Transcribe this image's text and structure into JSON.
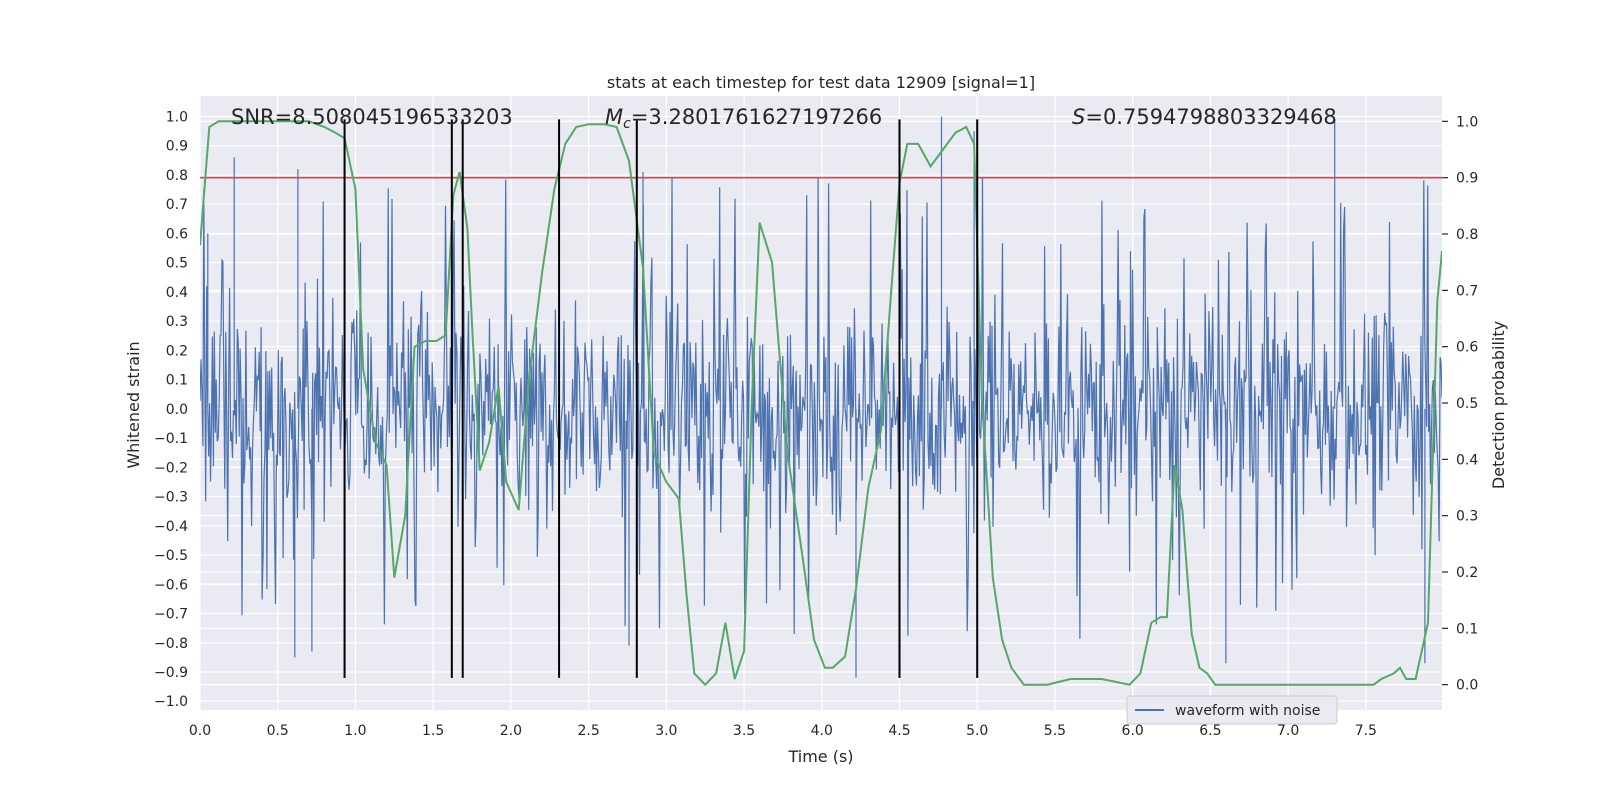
{
  "chart_data": {
    "type": "line",
    "title": "stats at each timestep for test data 12909 [signal=1]",
    "xlabel": "Time (s)",
    "ylabel": "Whitened strain",
    "ylabel_right": "Detection probability",
    "xlim": [
      0.0,
      7.99
    ],
    "ylim": [
      -1.03,
      1.07
    ],
    "ylim_right": [
      -0.045,
      1.045
    ],
    "x_ticks": [
      0.0,
      0.5,
      1.0,
      1.5,
      2.0,
      2.5,
      3.0,
      3.5,
      4.0,
      4.5,
      5.0,
      5.5,
      6.0,
      6.5,
      7.0,
      7.5
    ],
    "x_tick_labels": [
      "0.0",
      "0.5",
      "1.0",
      "1.5",
      "2.0",
      "2.5",
      "3.0",
      "3.5",
      "4.0",
      "4.5",
      "5.0",
      "5.5",
      "6.0",
      "6.5",
      "7.0",
      "7.5"
    ],
    "y_ticks": [
      -1.0,
      -0.9,
      -0.8,
      -0.7,
      -0.6,
      -0.5,
      -0.4,
      -0.3,
      -0.2,
      -0.1,
      0.0,
      0.1,
      0.2,
      0.3,
      0.4,
      0.5,
      0.6,
      0.7,
      0.8,
      0.9,
      1.0
    ],
    "y_tick_labels": [
      "−1.0",
      "−0.9",
      "−0.8",
      "−0.7",
      "−0.6",
      "−0.5",
      "−0.4",
      "−0.3",
      "−0.2",
      "−0.1",
      "0.0",
      "0.1",
      "0.2",
      "0.3",
      "0.4",
      "0.5",
      "0.6",
      "0.7",
      "0.8",
      "0.9",
      "1.0"
    ],
    "y_right_ticks": [
      0.0,
      0.1,
      0.2,
      0.3,
      0.4,
      0.5,
      0.6,
      0.7,
      0.8,
      0.9,
      1.0
    ],
    "y_right_tick_labels": [
      "0.0",
      "0.1",
      "0.2",
      "0.3",
      "0.4",
      "0.5",
      "0.6",
      "0.7",
      "0.8",
      "0.9",
      "1.0"
    ],
    "annotations": {
      "snr": "SNR=8.508045196533203",
      "mc_symbol": "M",
      "mc_sub": "c",
      "mc_value": "=3.2801761627197266",
      "s_symbol": "S",
      "s_value": "=0.7594798803329468"
    },
    "legend": {
      "placement": "bottom-right",
      "entries": [
        "waveform with noise"
      ]
    },
    "threshold": {
      "axis": "right",
      "value": 0.9,
      "color": "#c44e52"
    },
    "event_markers": {
      "x": [
        0.93,
        1.62,
        1.69,
        2.31,
        2.81,
        4.5,
        5.0
      ],
      "y_range": [
        -0.92,
        0.99
      ],
      "color": "#000000"
    },
    "waveform": {
      "name": "waveform with noise",
      "color": "#4c72b0",
      "x_range": [
        0.0,
        7.99
      ],
      "typical_envelope": [
        -0.45,
        0.5
      ],
      "peaks": [
        {
          "x": 0.05,
          "y": 0.6
        },
        {
          "x": 0.22,
          "y": 0.86
        },
        {
          "x": 0.63,
          "y": 0.82
        },
        {
          "x": 0.61,
          "y": -0.85
        },
        {
          "x": 0.72,
          "y": -0.83
        },
        {
          "x": 1.62,
          "y": 0.88
        },
        {
          "x": 1.69,
          "y": 0.85
        },
        {
          "x": 2.81,
          "y": 0.82
        },
        {
          "x": 2.85,
          "y": 0.81
        },
        {
          "x": 2.76,
          "y": -0.81
        },
        {
          "x": 4.22,
          "y": -0.92
        },
        {
          "x": 4.77,
          "y": 1.0
        },
        {
          "x": 4.98,
          "y": 0.95
        },
        {
          "x": 7.3,
          "y": 0.99
        },
        {
          "x": 6.6,
          "y": -0.87
        },
        {
          "x": 7.88,
          "y": -0.87
        }
      ]
    },
    "probability": {
      "name": "detection probability",
      "axis": "right",
      "color": "#55a868",
      "x": [
        0.0,
        0.06,
        0.12,
        0.3,
        0.5,
        0.7,
        0.8,
        0.87,
        0.93,
        1.0,
        1.05,
        1.13,
        1.2,
        1.25,
        1.32,
        1.38,
        1.45,
        1.52,
        1.58,
        1.63,
        1.67,
        1.72,
        1.75,
        1.8,
        1.86,
        1.92,
        1.97,
        2.05,
        2.12,
        2.2,
        2.28,
        2.35,
        2.42,
        2.5,
        2.6,
        2.68,
        2.76,
        2.85,
        2.92,
        3.0,
        3.08,
        3.13,
        3.18,
        3.25,
        3.32,
        3.38,
        3.44,
        3.5,
        3.55,
        3.6,
        3.68,
        3.78,
        3.88,
        3.95,
        4.02,
        4.07,
        4.15,
        4.22,
        4.3,
        4.38,
        4.45,
        4.5,
        4.55,
        4.62,
        4.7,
        4.78,
        4.86,
        4.93,
        4.98,
        5.03,
        5.1,
        5.16,
        5.22,
        5.3,
        5.45,
        5.6,
        5.8,
        5.98,
        6.05,
        6.12,
        6.18,
        6.22,
        6.27,
        6.32,
        6.38,
        6.43,
        6.48,
        6.53,
        6.58,
        6.63,
        6.8,
        7.0,
        7.3,
        7.55,
        7.6,
        7.68,
        7.72,
        7.76,
        7.82,
        7.9,
        7.96,
        7.99
      ],
      "y": [
        0.78,
        0.99,
        1.0,
        1.0,
        1.0,
        1.0,
        0.99,
        0.98,
        0.97,
        0.88,
        0.56,
        0.43,
        0.39,
        0.19,
        0.3,
        0.6,
        0.61,
        0.61,
        0.62,
        0.87,
        0.91,
        0.81,
        0.64,
        0.38,
        0.43,
        0.53,
        0.36,
        0.31,
        0.55,
        0.73,
        0.88,
        0.96,
        0.99,
        0.995,
        0.995,
        0.99,
        0.93,
        0.74,
        0.41,
        0.36,
        0.33,
        0.16,
        0.02,
        0.0,
        0.02,
        0.11,
        0.01,
        0.06,
        0.5,
        0.82,
        0.75,
        0.41,
        0.22,
        0.08,
        0.03,
        0.03,
        0.05,
        0.17,
        0.35,
        0.45,
        0.71,
        0.89,
        0.96,
        0.96,
        0.92,
        0.95,
        0.98,
        0.99,
        0.96,
        0.51,
        0.19,
        0.08,
        0.03,
        0.0,
        0.0,
        0.01,
        0.01,
        0.0,
        0.02,
        0.11,
        0.12,
        0.12,
        0.39,
        0.31,
        0.09,
        0.03,
        0.02,
        0.0,
        0.0,
        0.0,
        0.0,
        0.0,
        0.0,
        0.0,
        0.01,
        0.02,
        0.03,
        0.01,
        0.01,
        0.11,
        0.68,
        0.77
      ]
    }
  }
}
